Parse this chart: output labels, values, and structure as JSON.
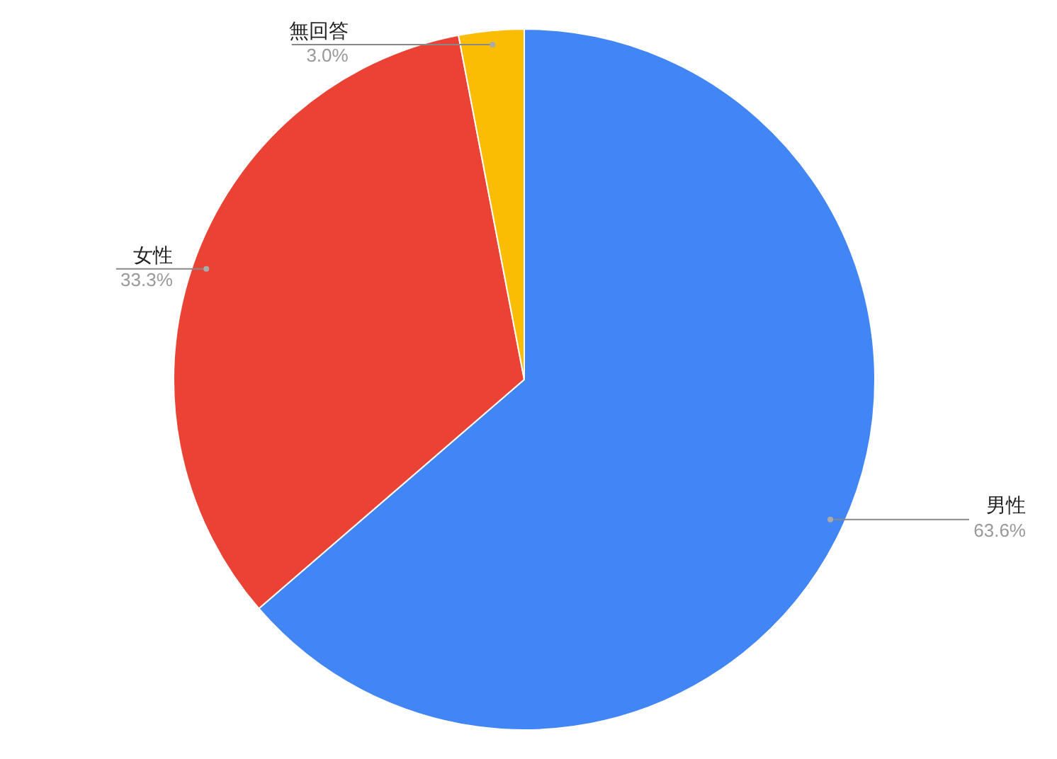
{
  "chart_data": {
    "type": "pie",
    "categories": [
      "男性",
      "女性",
      "無回答"
    ],
    "values": [
      63.6,
      33.3,
      3.0
    ],
    "colors": [
      "#4285f4",
      "#ea4335",
      "#fbbc04"
    ],
    "value_labels": [
      "63.6%",
      "33.3%",
      "3.0%"
    ],
    "legend": false
  }
}
